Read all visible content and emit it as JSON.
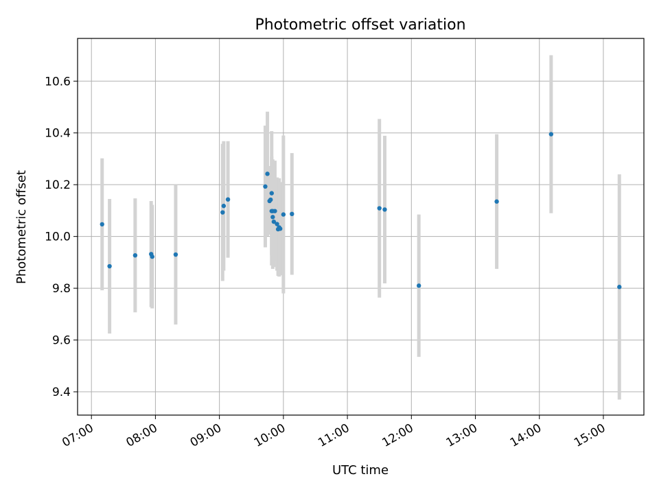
{
  "chart_data": {
    "type": "scatter",
    "title": "Photometric offset variation",
    "xlabel": "UTC time",
    "ylabel": "Photometric offset",
    "x_ticks": [
      "07:00",
      "08:00",
      "09:00",
      "10:00",
      "11:00",
      "12:00",
      "13:00",
      "14:00",
      "15:00"
    ],
    "y_ticks": [
      "9.4",
      "9.6",
      "9.8",
      "10.0",
      "10.2",
      "10.4",
      "10.6"
    ],
    "x_range": [
      "06:47",
      "15:38"
    ],
    "ylim": [
      9.31,
      10.765
    ],
    "grid": true,
    "marker_color": "#1f77b4",
    "errorbar_color": "#d3d3d3",
    "points": [
      {
        "time": "07:10",
        "y": 10.047,
        "err": 0.255
      },
      {
        "time": "07:17",
        "y": 9.885,
        "err": 0.26
      },
      {
        "time": "07:41",
        "y": 9.927,
        "err": 0.22
      },
      {
        "time": "07:56",
        "y": 9.932,
        "err": 0.205
      },
      {
        "time": "07:57",
        "y": 9.922,
        "err": 0.2
      },
      {
        "time": "08:19",
        "y": 9.93,
        "err": 0.27
      },
      {
        "time": "09:03",
        "y": 10.093,
        "err": 0.265
      },
      {
        "time": "09:04",
        "y": 10.118,
        "err": 0.25
      },
      {
        "time": "09:08",
        "y": 10.143,
        "err": 0.225
      },
      {
        "time": "09:43",
        "y": 10.193,
        "err": 0.235
      },
      {
        "time": "09:45",
        "y": 10.242,
        "err": 0.24
      },
      {
        "time": "09:47",
        "y": 10.137,
        "err": 0.13
      },
      {
        "time": "09:48",
        "y": 10.142,
        "err": 0.13
      },
      {
        "time": "09:49",
        "y": 10.098,
        "err": 0.21
      },
      {
        "time": "09:49",
        "y": 10.167,
        "err": 0.24
      },
      {
        "time": "09:50",
        "y": 10.075,
        "err": 0.2
      },
      {
        "time": "09:50",
        "y": 10.098,
        "err": 0.2
      },
      {
        "time": "09:51",
        "y": 10.057,
        "err": 0.175
      },
      {
        "time": "09:52",
        "y": 10.098,
        "err": 0.195
      },
      {
        "time": "09:54",
        "y": 10.048,
        "err": 0.18
      },
      {
        "time": "09:55",
        "y": 10.028,
        "err": 0.18
      },
      {
        "time": "09:56",
        "y": 10.035,
        "err": 0.19
      },
      {
        "time": "09:57",
        "y": 10.03,
        "err": 0.18
      },
      {
        "time": "10:00",
        "y": 10.085,
        "err": 0.305
      },
      {
        "time": "10:08",
        "y": 10.087,
        "err": 0.235
      },
      {
        "time": "11:30",
        "y": 10.109,
        "err": 0.345
      },
      {
        "time": "11:35",
        "y": 10.104,
        "err": 0.285
      },
      {
        "time": "12:07",
        "y": 9.81,
        "err": 0.275
      },
      {
        "time": "13:20",
        "y": 10.135,
        "err": 0.26
      },
      {
        "time": "14:11",
        "y": 10.395,
        "err": 0.305
      },
      {
        "time": "15:15",
        "y": 9.805,
        "err": 0.435
      }
    ]
  }
}
